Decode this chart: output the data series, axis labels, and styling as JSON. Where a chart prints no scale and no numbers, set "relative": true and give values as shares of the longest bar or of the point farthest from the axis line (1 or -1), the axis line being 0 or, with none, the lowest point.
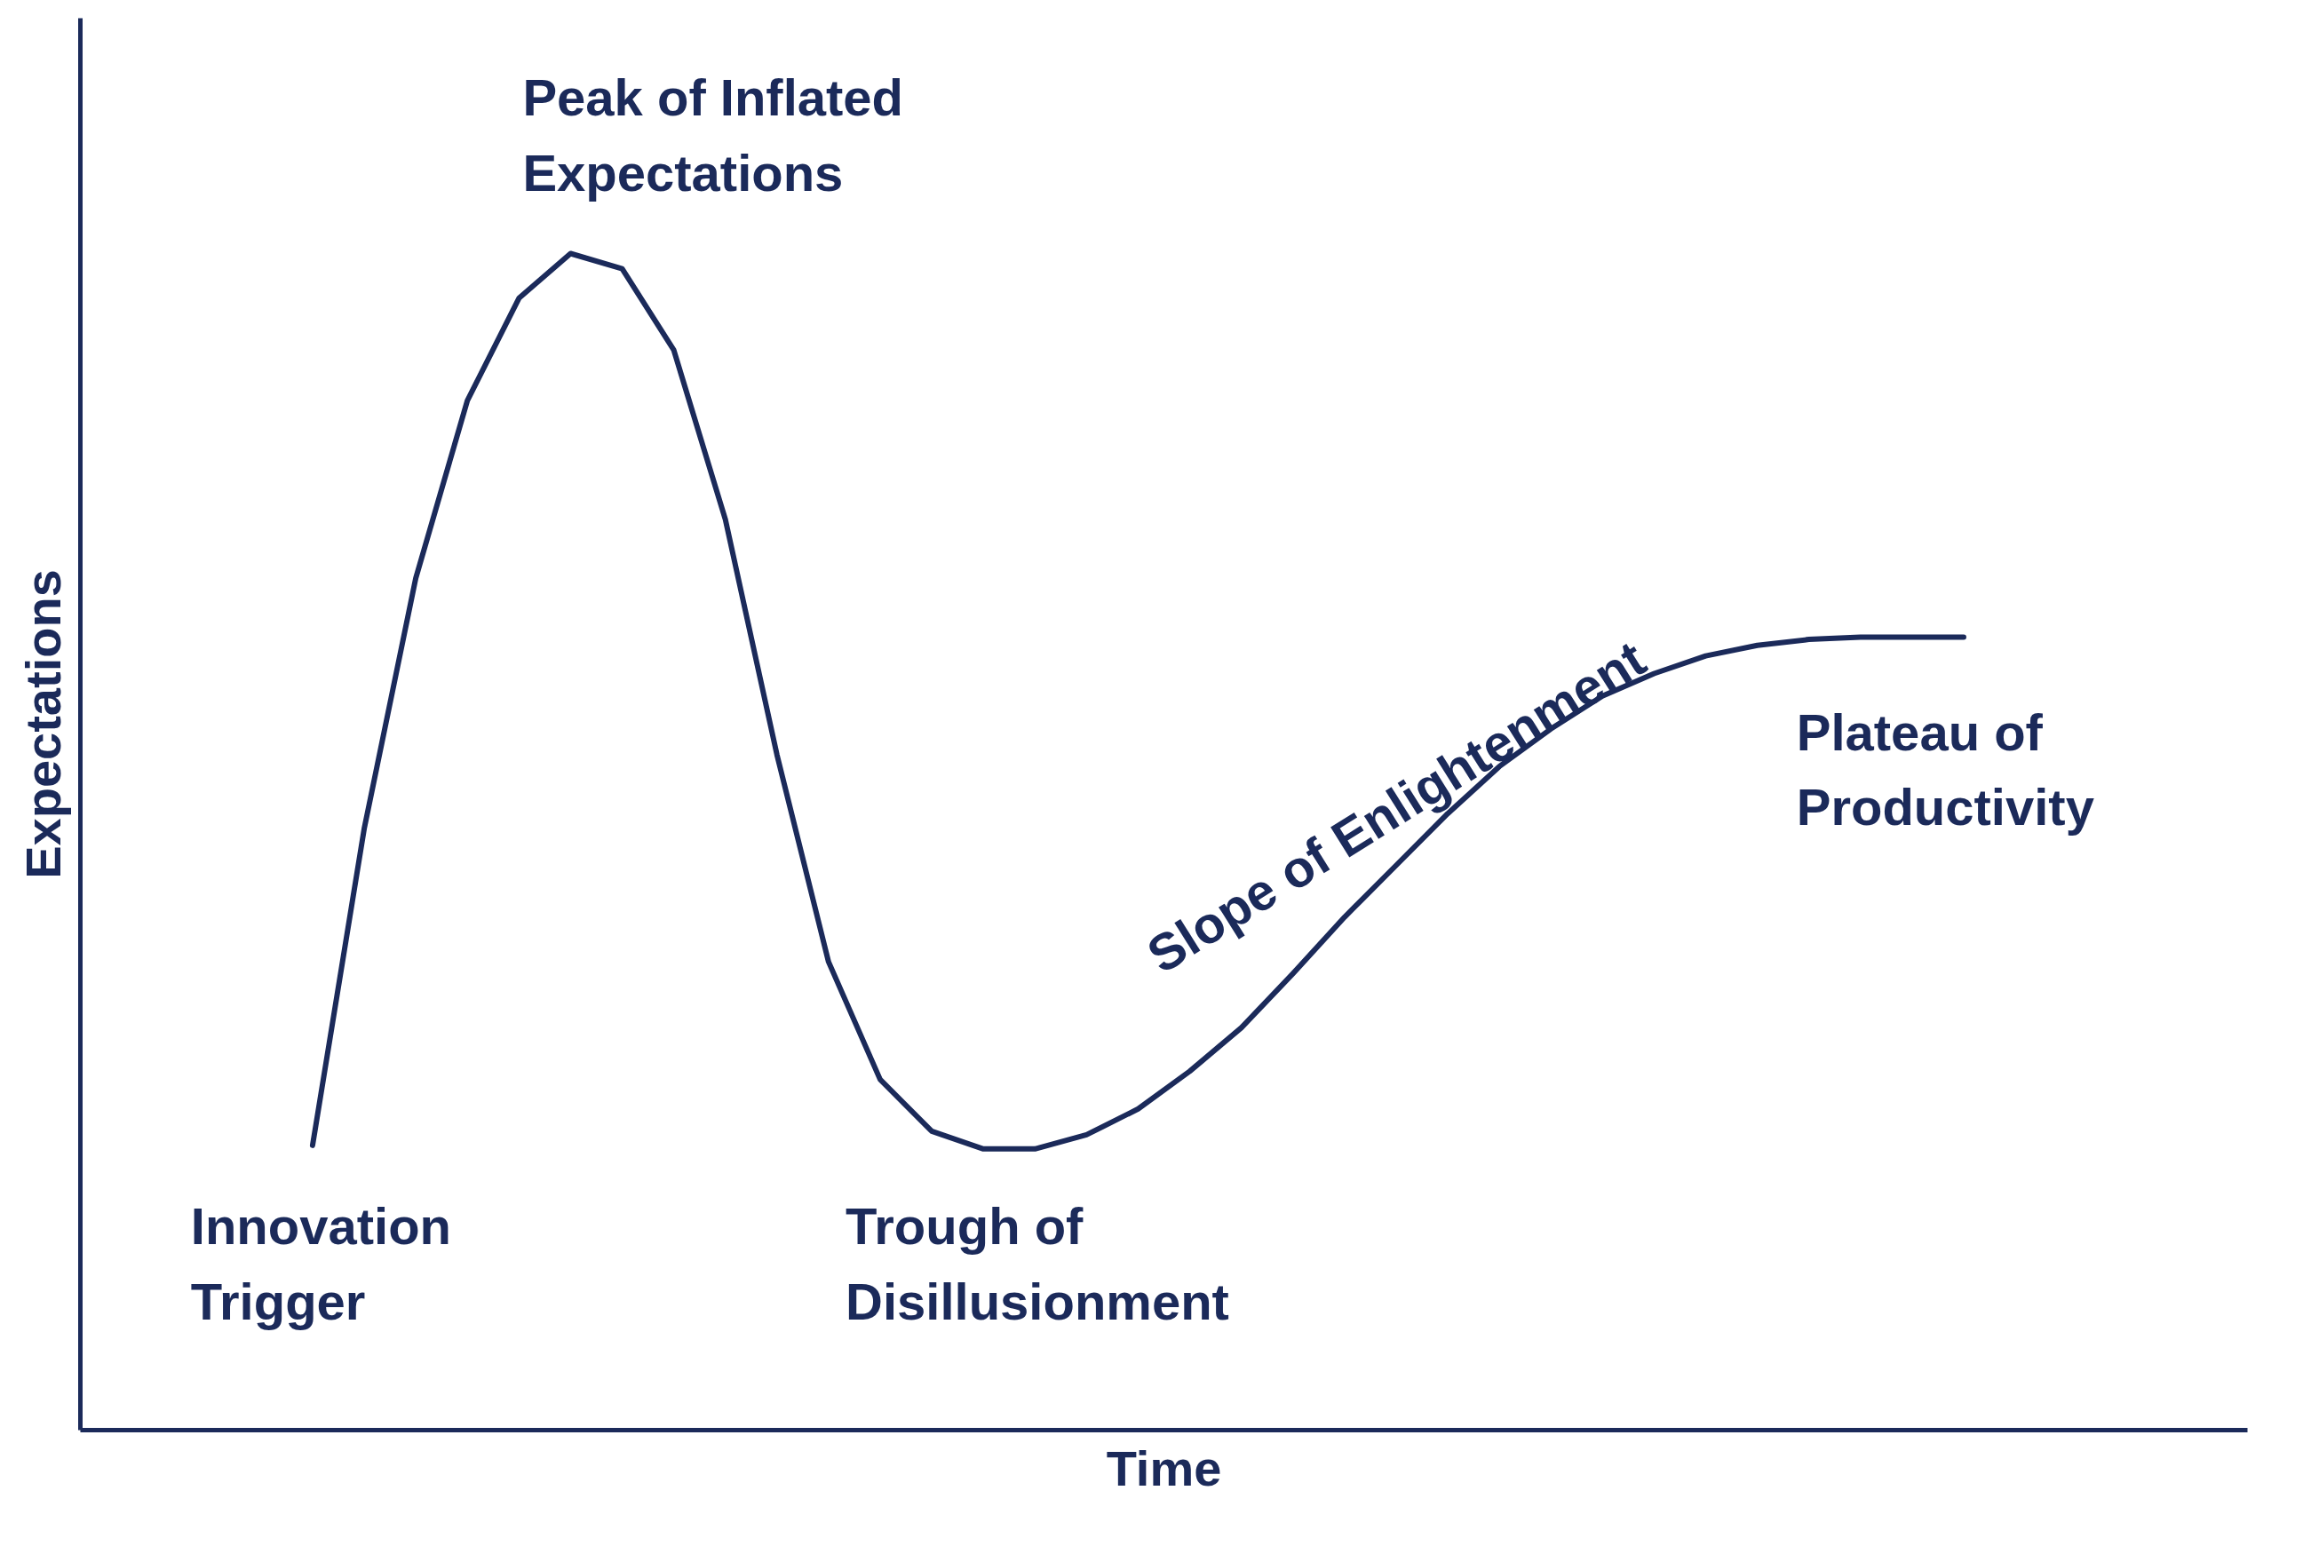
{
  "chart_data": {
    "type": "line",
    "relative": true,
    "xlabel": "Time",
    "ylabel": "Expectations",
    "categories": [
      null,
      null,
      null,
      null,
      null,
      null,
      null,
      null,
      null,
      null,
      null,
      null,
      null,
      null,
      null,
      null,
      null,
      null,
      null,
      null,
      null,
      null,
      null,
      null,
      null,
      null,
      null,
      null,
      null,
      null,
      null,
      null,
      null,
      null,
      null,
      null,
      null,
      null,
      null,
      null,
      null,
      null
    ],
    "series": [
      {
        "color": "#1b2a5a",
        "values": [
          null,
          null,
          null,
          null,
          0.242,
          0.511,
          0.724,
          0.875,
          0.962,
          1.0,
          0.987,
          0.918,
          0.774,
          0.574,
          0.398,
          0.298,
          0.254,
          0.239,
          0.239,
          0.251,
          0.273,
          0.305,
          0.342,
          0.388,
          0.436,
          0.48,
          0.524,
          0.564,
          0.596,
          0.624,
          0.643,
          0.658,
          0.667,
          0.672,
          0.674,
          0.674,
          0.674,
          null,
          null,
          null,
          null,
          null
        ]
      }
    ],
    "annotations": [
      "Peak of Inflated\nExpectations",
      "Innovation\nTrigger",
      "Trough of\nDisillusionment",
      "Slope of Enlightenment",
      "Plateau of\nProductivity"
    ],
    "grid": false,
    "marker": "none",
    "line_style": "solid"
  }
}
